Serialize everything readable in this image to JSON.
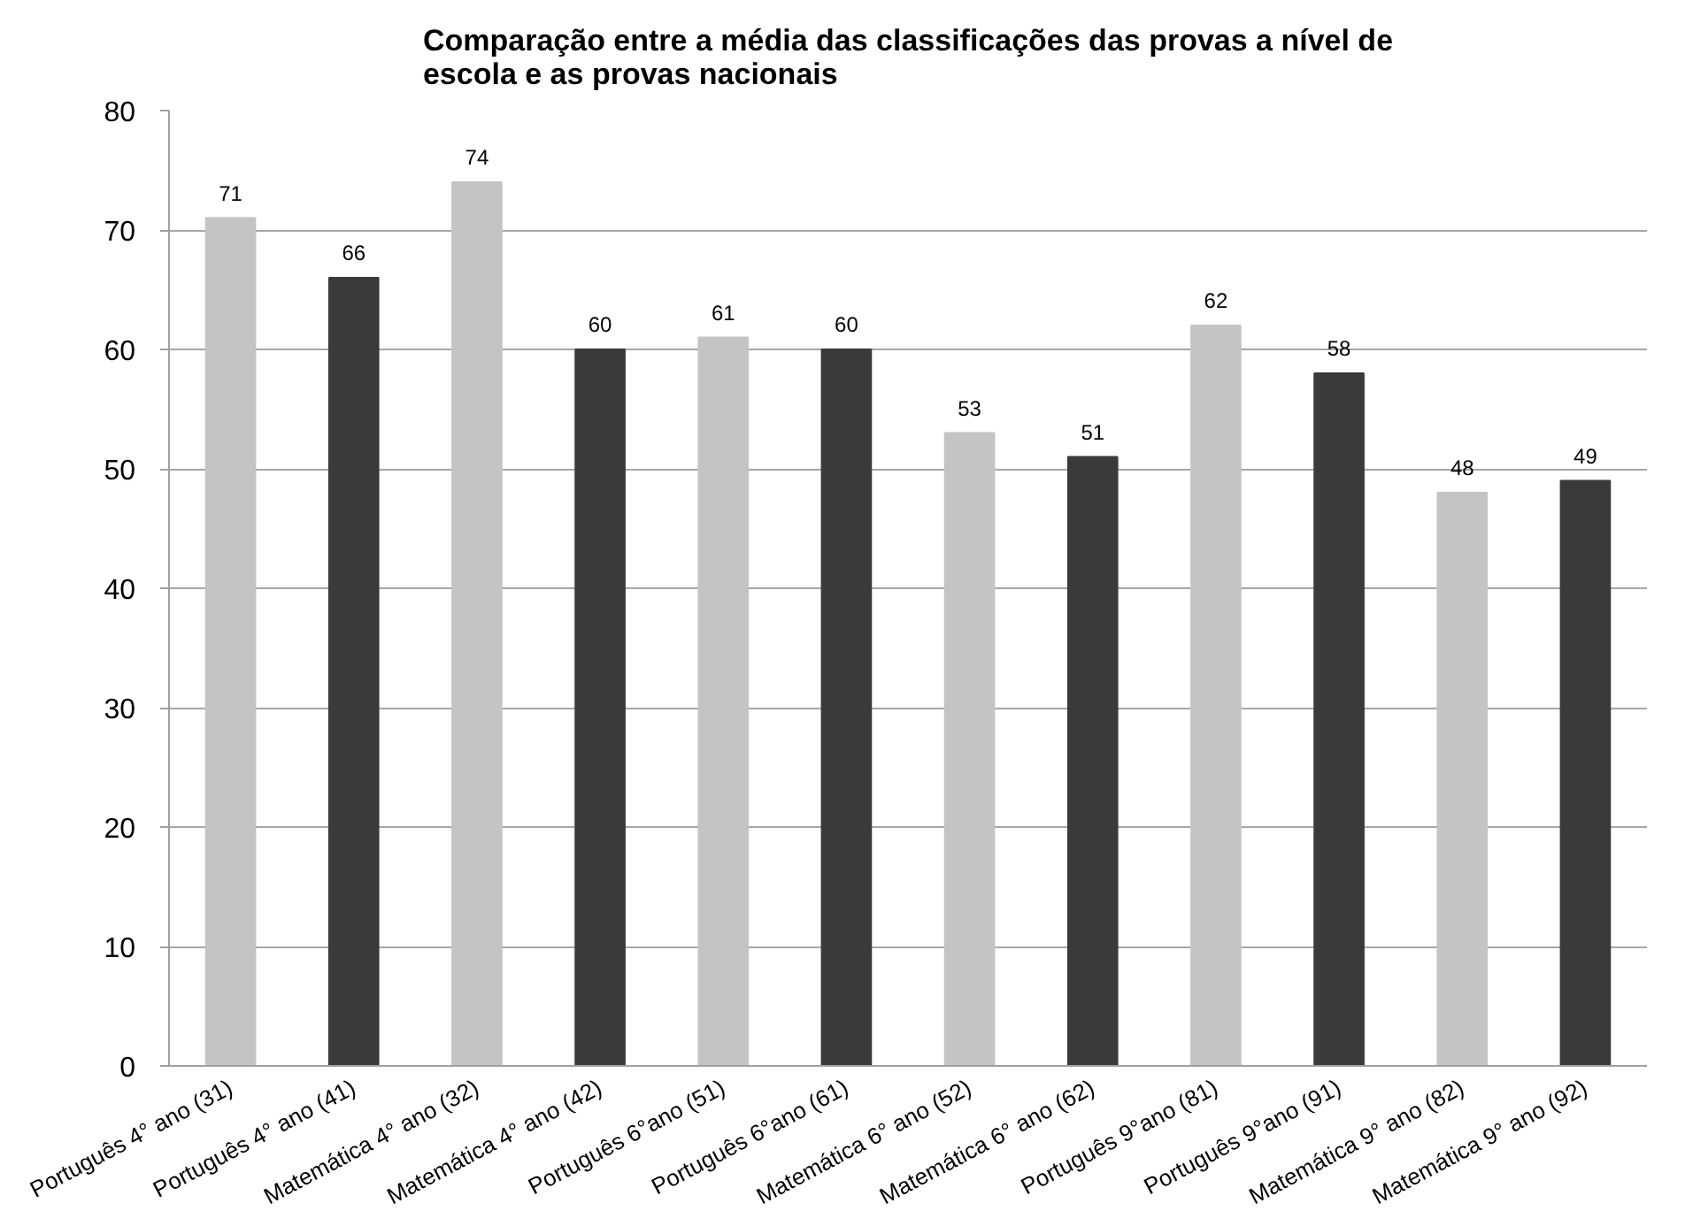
{
  "chart_data": {
    "type": "bar",
    "title": "Comparação entre a média das classificações das provas a nível de\nescola e as provas nacionais",
    "categories": [
      "Português 4° ano (31)",
      "Português 4° ano (41)",
      "Matemática 4° ano (32)",
      "Matemática 4° ano (42)",
      "Português 6°ano (51)",
      "Português 6°ano (61)",
      "Matemática 6° ano (52)",
      "Matemática 6° ano (62)",
      "Português 9°ano (81)",
      "Português 9°ano (91)",
      "Matemática 9° ano (82)",
      "Matemática 9° ano (92)"
    ],
    "values": [
      71,
      66,
      74,
      60,
      61,
      60,
      53,
      51,
      62,
      58,
      48,
      49
    ],
    "colors": [
      "#c4c4c4",
      "#3a3a3a",
      "#c4c4c4",
      "#3a3a3a",
      "#c4c4c4",
      "#3a3a3a",
      "#c4c4c4",
      "#3a3a3a",
      "#c4c4c4",
      "#3a3a3a",
      "#c4c4c4",
      "#3a3a3a"
    ],
    "ylim": [
      0,
      80
    ],
    "yticks": [
      0,
      10,
      20,
      30,
      40,
      50,
      60,
      70,
      80
    ],
    "grid": "y",
    "data_labels": true
  }
}
